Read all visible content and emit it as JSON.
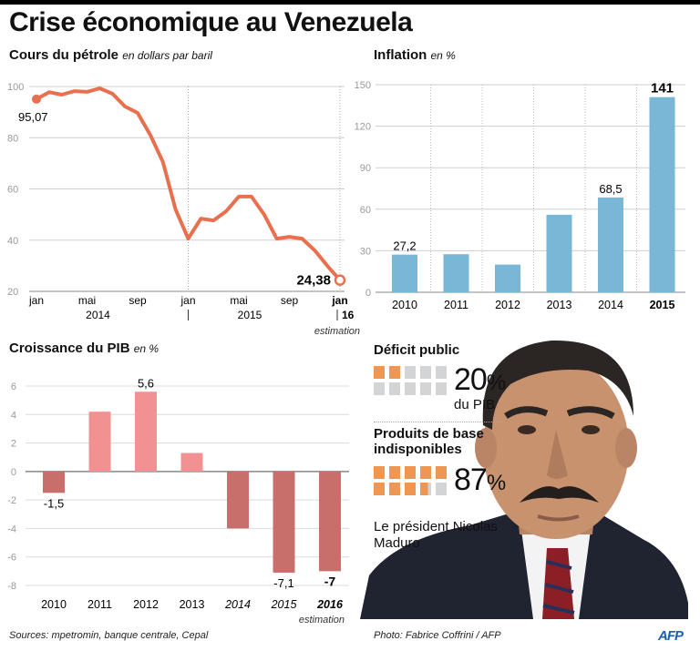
{
  "title": "Crise économique au Venezuela",
  "chart_data": [
    {
      "id": "oil",
      "type": "line",
      "title": "Cours du pétrole",
      "unit": "en dollars par baril",
      "ylim": [
        20,
        100
      ],
      "yticks": [
        20,
        40,
        60,
        80,
        100
      ],
      "ytick_labels": [
        "20",
        "40",
        "60",
        "80",
        "100"
      ],
      "grid": true,
      "x": [
        "2014-01",
        "2014-02",
        "2014-03",
        "2014-04",
        "2014-05",
        "2014-06",
        "2014-07",
        "2014-08",
        "2014-09",
        "2014-10",
        "2014-11",
        "2014-12",
        "2015-01",
        "2015-02",
        "2015-03",
        "2015-04",
        "2015-05",
        "2015-06",
        "2015-07",
        "2015-08",
        "2015-09",
        "2015-10",
        "2015-11",
        "2015-12",
        "2016-01"
      ],
      "values": [
        95.07,
        97.8,
        96.8,
        98.2,
        97.9,
        99.3,
        97.2,
        92.2,
        89.7,
        81.1,
        70.5,
        52,
        40.6,
        48.4,
        47.7,
        51.3,
        57,
        57,
        50,
        40.6,
        41.3,
        40.6,
        36,
        30,
        24.38
      ],
      "xtick_labels": [
        {
          "month": 0,
          "label": "jan"
        },
        {
          "month": 4,
          "label": "mai"
        },
        {
          "month": 8,
          "label": "sep"
        },
        {
          "month": 12,
          "label": "jan"
        },
        {
          "month": 16,
          "label": "mai"
        },
        {
          "month": 20,
          "label": "sep"
        },
        {
          "month": 24,
          "label": "jan"
        }
      ],
      "year_labels": [
        {
          "month": 4,
          "label": "2014"
        },
        {
          "month": 16,
          "label": "2015"
        },
        {
          "month": 24,
          "label": "16"
        }
      ],
      "annotations": {
        "start": "95,07",
        "end": "24,38",
        "end_note": "estimation"
      },
      "color": "#e8704e"
    },
    {
      "id": "inflation",
      "type": "bar",
      "title": "Inflation",
      "unit": "en %",
      "categories": [
        "2010",
        "2011",
        "2012",
        "2013",
        "2014",
        "2015"
      ],
      "values": [
        27.2,
        27.5,
        20,
        56,
        68.5,
        141
      ],
      "data_labels": [
        "27,2",
        "",
        "",
        "",
        "68,5",
        "141"
      ],
      "ylim": [
        0,
        150
      ],
      "yticks": [
        0,
        30,
        60,
        90,
        120,
        150
      ],
      "ytick_labels": [
        "0",
        "30",
        "60",
        "90",
        "120",
        "150"
      ],
      "highlight_category": "2015",
      "grid": true,
      "color": "#7ab6d6"
    },
    {
      "id": "gdp",
      "type": "bar",
      "title": "Croissance du PIB",
      "unit": "en %",
      "categories": [
        "2010",
        "2011",
        "2012",
        "2013",
        "2014",
        "2015",
        "2016"
      ],
      "values": [
        -1.5,
        4.2,
        5.6,
        1.3,
        -4.0,
        -7.1,
        -7
      ],
      "data_labels": [
        "-1,5",
        "",
        "5,6",
        "",
        "",
        "-7,1",
        "-7"
      ],
      "ylim": [
        -8,
        6
      ],
      "yticks": [
        -8,
        -6,
        -4,
        -2,
        0,
        2,
        4,
        6
      ],
      "ytick_labels": [
        "-8",
        "-6",
        "-4",
        "-2",
        "0",
        "2",
        "4",
        "6"
      ],
      "italic_categories": [
        "2014",
        "2015",
        "2016"
      ],
      "bold_categories": [
        "2016"
      ],
      "note": "estimation",
      "grid": true,
      "color_positive": "#f29191",
      "color_negative": "#c86e6b"
    }
  ],
  "deficit": {
    "title": "Déficit public",
    "value": "20",
    "pct": "%",
    "sub": "du PIB",
    "fraction": 0.2
  },
  "products": {
    "title_line1": "Produits de base",
    "title_line2": "indisponibles",
    "value": "87",
    "pct": "%",
    "fraction": 0.87
  },
  "caption": {
    "line1": "Le président Nicolas",
    "line2": "Maduro"
  },
  "footer": {
    "sources": "Sources: mpetromin, banque centrale, Cepal",
    "photo": "Photo: Fabrice Coffrini / AFP",
    "logo": "AFP"
  }
}
